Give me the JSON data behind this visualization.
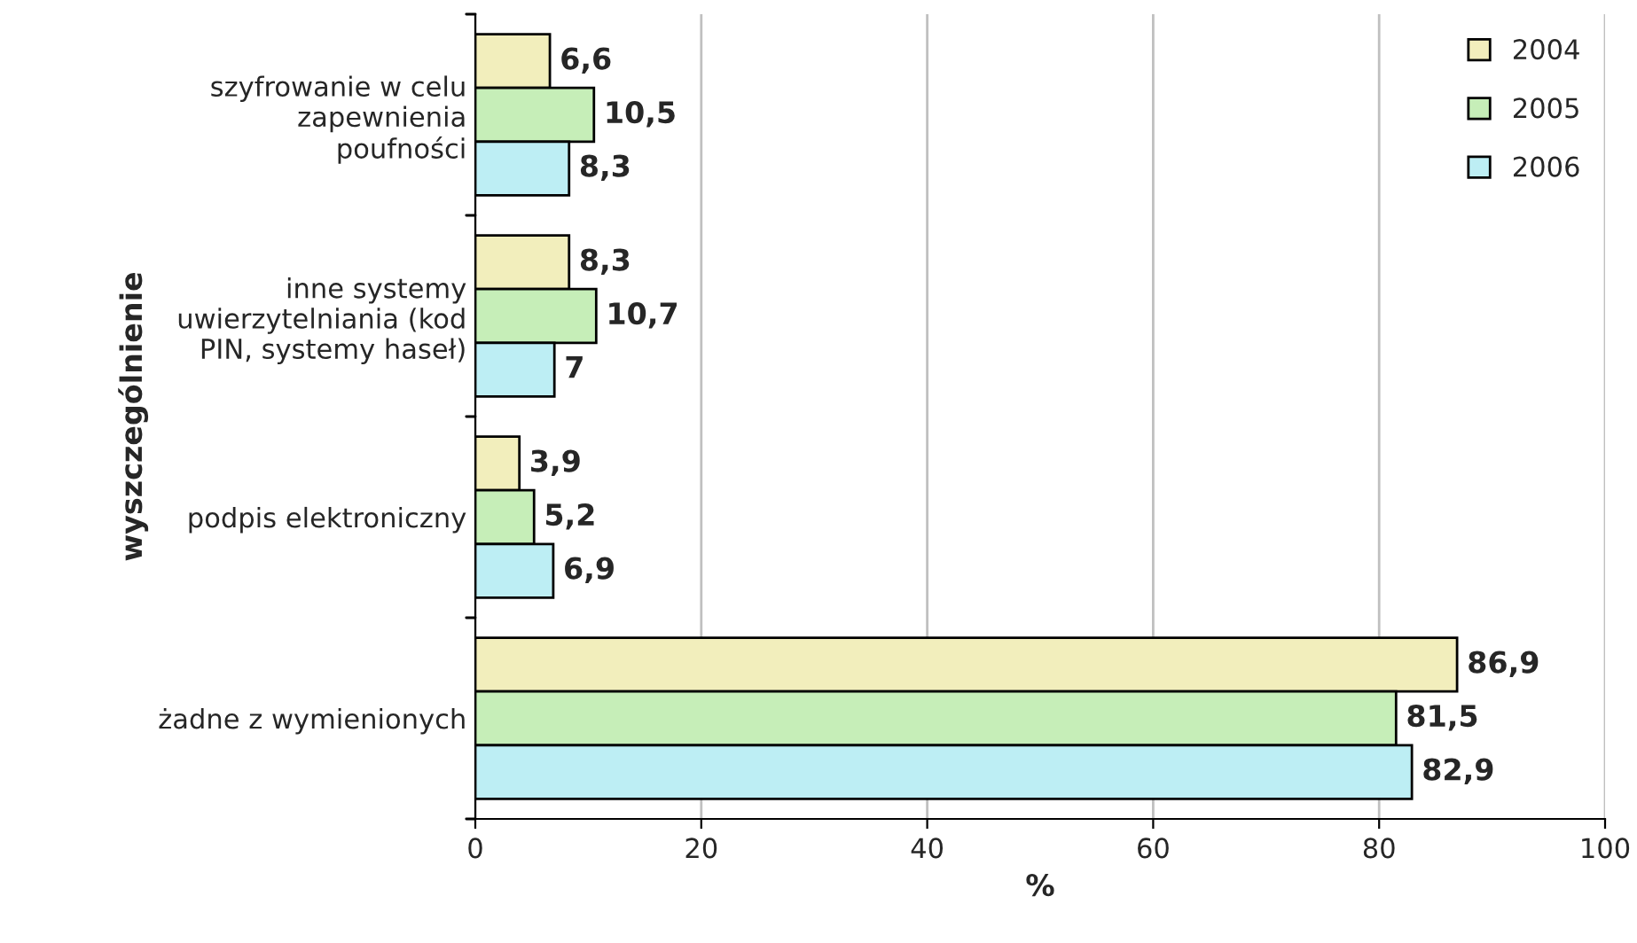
{
  "chart_data": {
    "type": "bar",
    "orientation": "horizontal",
    "categories": [
      "szyfrowanie w celu\nzapewnienia\npoufności",
      "inne systemy\nuwierzytelniania (kod\nPIN, systemy haseł)",
      "podpis elektroniczny",
      "żadne z wymienionych"
    ],
    "series": [
      {
        "name": "2004",
        "color": "#f2eebc",
        "values": [
          6.6,
          8.3,
          3.9,
          86.9
        ],
        "value_labels": [
          "6,6",
          "8,3",
          "3,9",
          "86,9"
        ]
      },
      {
        "name": "2005",
        "color": "#c6eeb8",
        "values": [
          10.5,
          10.7,
          5.2,
          81.5
        ],
        "value_labels": [
          "10,5",
          "10,7",
          "5,2",
          "81,5"
        ]
      },
      {
        "name": "2006",
        "color": "#bdeef4",
        "values": [
          8.3,
          7,
          6.9,
          82.9
        ],
        "value_labels": [
          "8,3",
          "7",
          "6,9",
          "82,9"
        ]
      }
    ],
    "xlabel": "%",
    "ylabel": "wyszczególnienie",
    "xlim": [
      0,
      100
    ],
    "xticks": [
      0,
      20,
      40,
      60,
      80,
      100
    ],
    "grid": "x",
    "legend": "top right"
  }
}
